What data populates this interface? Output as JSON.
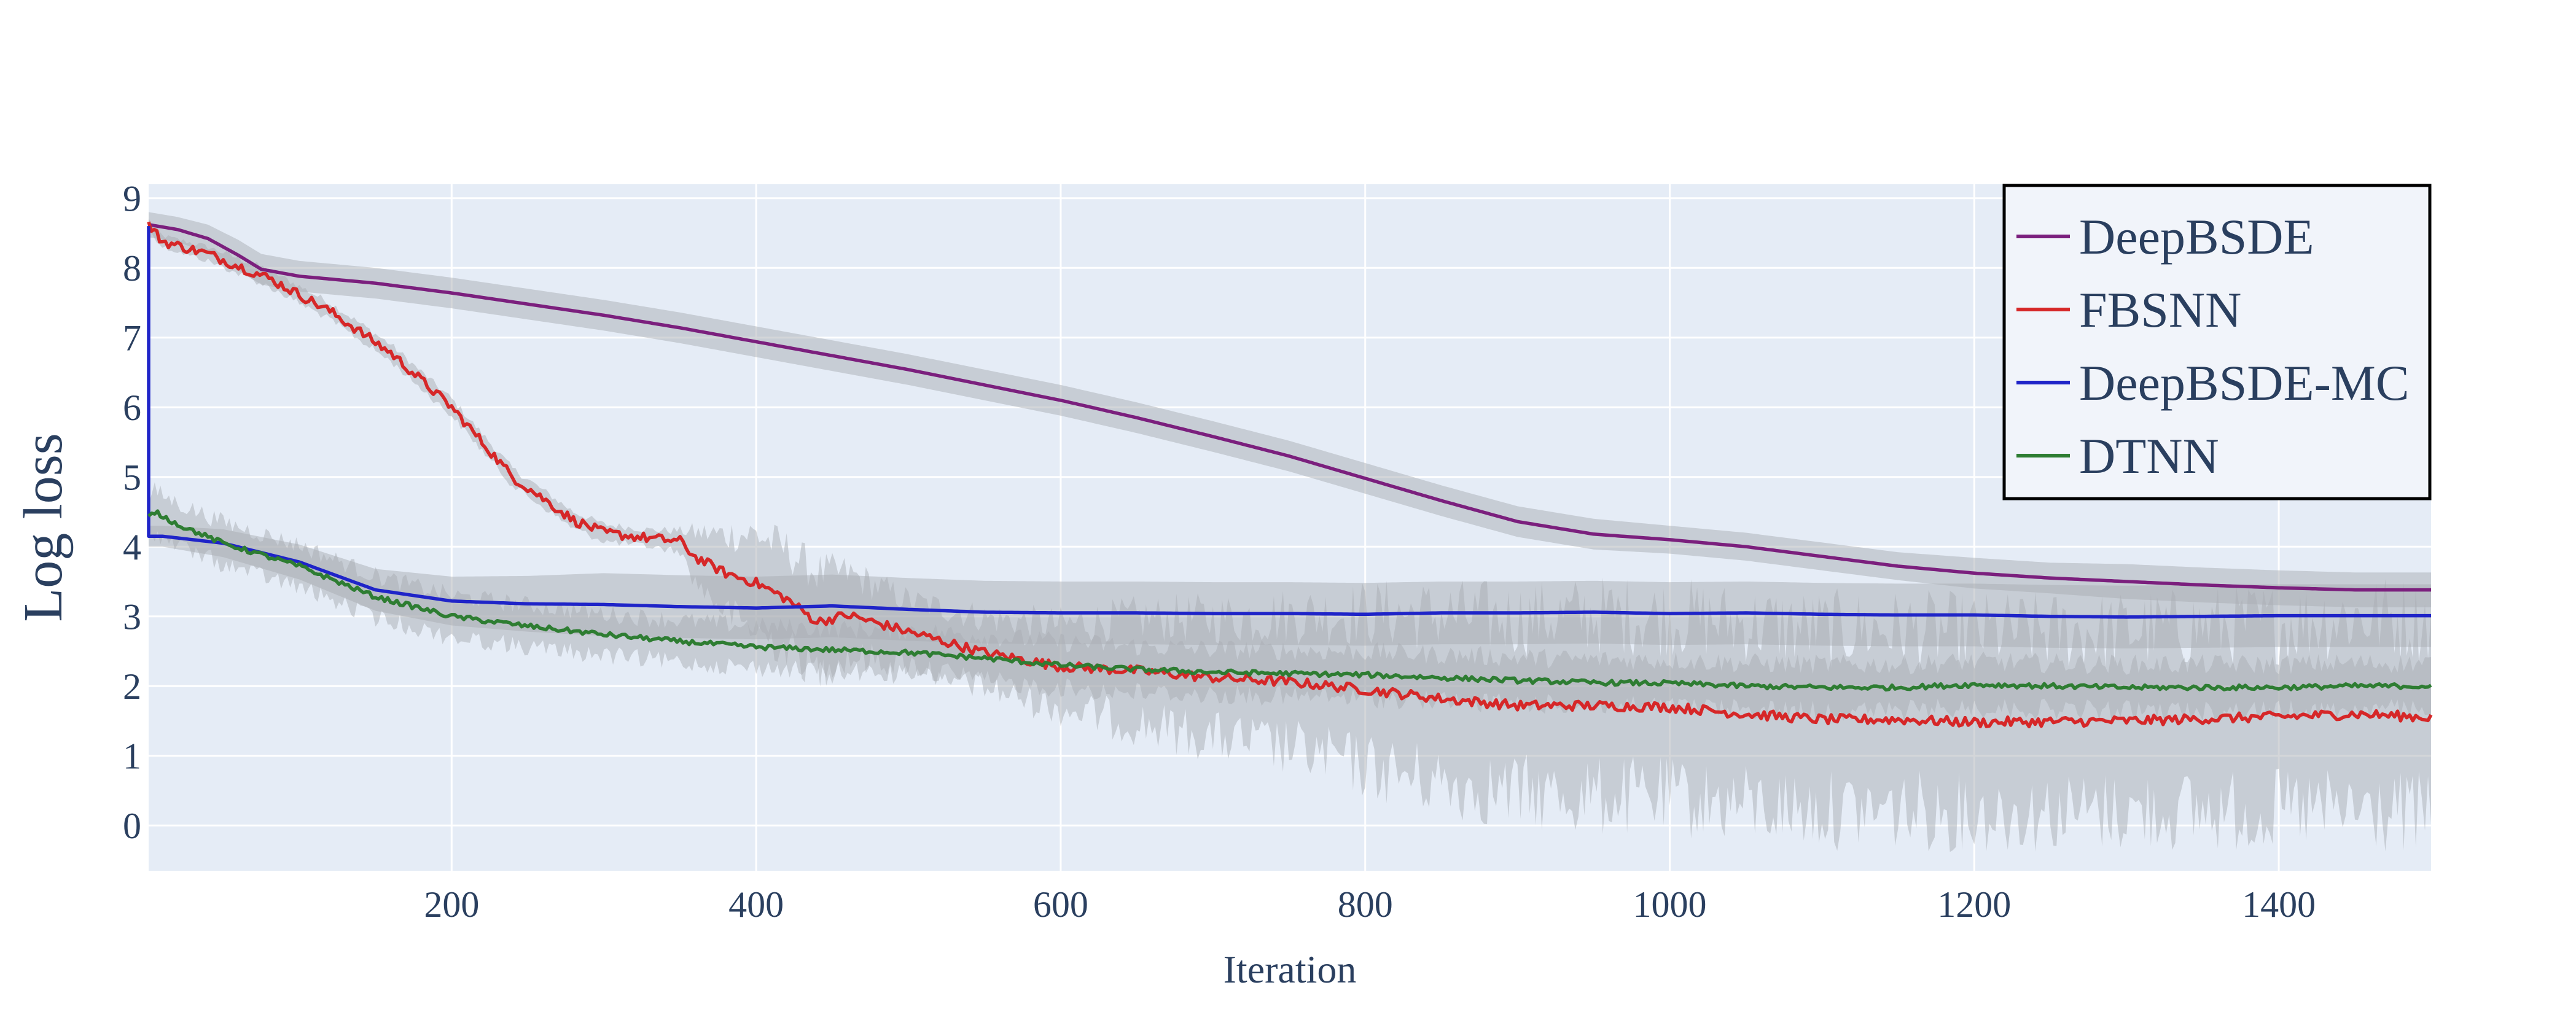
{
  "colors": {
    "plot_background": "#e5ecf6",
    "grid": "#ffffff",
    "band": "#a9aeb4",
    "text": "#2a3f5f",
    "legend_background": "#f1f4fa",
    "legend_border": "#000000"
  },
  "chart_data": {
    "type": "line",
    "xlabel": "Iteration",
    "ylabel": "Log loss",
    "xlim": [
      1,
      1500
    ],
    "ylim": [
      -0.65,
      9.2
    ],
    "xticks": [
      200,
      400,
      600,
      800,
      1000,
      1200,
      1400
    ],
    "yticks": [
      0,
      1,
      2,
      3,
      4,
      5,
      6,
      7,
      8,
      9
    ],
    "grid": true,
    "legend_position": "top-right",
    "series": [
      {
        "name": "DeepBSDE",
        "color": "#7b1f7d",
        "noise": 0.0,
        "x": [
          1,
          20,
          40,
          60,
          75,
          90,
          100,
          150,
          200,
          250,
          300,
          350,
          400,
          450,
          500,
          550,
          600,
          650,
          700,
          750,
          800,
          850,
          900,
          950,
          1000,
          1050,
          1100,
          1150,
          1200,
          1250,
          1300,
          1350,
          1400,
          1450,
          1500
        ],
        "values": [
          8.62,
          8.55,
          8.42,
          8.18,
          7.98,
          7.92,
          7.88,
          7.78,
          7.64,
          7.48,
          7.32,
          7.14,
          6.94,
          6.74,
          6.54,
          6.32,
          6.1,
          5.85,
          5.58,
          5.3,
          4.98,
          4.66,
          4.36,
          4.18,
          4.1,
          4.0,
          3.86,
          3.72,
          3.62,
          3.55,
          3.5,
          3.45,
          3.41,
          3.38,
          3.38
        ],
        "band": [
          0.18,
          0.18,
          0.2,
          0.22,
          0.22,
          0.22,
          0.22,
          0.22,
          0.22,
          0.22,
          0.22,
          0.22,
          0.22,
          0.22,
          0.22,
          0.22,
          0.22,
          0.22,
          0.22,
          0.22,
          0.22,
          0.22,
          0.22,
          0.22,
          0.2,
          0.2,
          0.2,
          0.2,
          0.22,
          0.22,
          0.25,
          0.25,
          0.25,
          0.25,
          0.25
        ]
      },
      {
        "name": "FBSNN",
        "color": "#d62728",
        "noise": 0.07,
        "x": [
          1,
          10,
          40,
          80,
          120,
          160,
          200,
          240,
          280,
          300,
          330,
          350,
          360,
          380,
          400,
          420,
          440,
          460,
          500,
          550,
          600,
          650,
          700,
          750,
          800,
          850,
          900,
          950,
          1000,
          1050,
          1100,
          1150,
          1200,
          1300,
          1400,
          1450,
          1500
        ],
        "values": [
          8.62,
          8.38,
          8.2,
          7.85,
          7.38,
          6.78,
          6.0,
          5.0,
          4.38,
          4.2,
          4.12,
          4.08,
          3.85,
          3.62,
          3.48,
          3.25,
          2.92,
          3.02,
          2.78,
          2.48,
          2.28,
          2.22,
          2.12,
          2.06,
          1.95,
          1.82,
          1.72,
          1.72,
          1.7,
          1.6,
          1.52,
          1.52,
          1.48,
          1.5,
          1.56,
          1.6,
          1.55
        ],
        "band": [
          0.08,
          0.08,
          0.1,
          0.12,
          0.12,
          0.12,
          0.12,
          0.12,
          0.12,
          0.12,
          0.12,
          0.15,
          0.35,
          0.55,
          0.7,
          0.7,
          0.7,
          0.6,
          0.45,
          0.5,
          0.6,
          0.75,
          0.85,
          0.95,
          1.1,
          1.2,
          1.25,
          1.3,
          1.3,
          1.3,
          1.3,
          1.3,
          1.3,
          1.3,
          1.35,
          1.4,
          1.4
        ]
      },
      {
        "name": "DeepBSDE-MC",
        "color": "#1f24c8",
        "noise": 0.0,
        "x": [
          1,
          1,
          10,
          50,
          100,
          150,
          200,
          250,
          300,
          350,
          400,
          450,
          500,
          550,
          600,
          650,
          700,
          750,
          800,
          850,
          900,
          950,
          1000,
          1050,
          1100,
          1150,
          1200,
          1250,
          1300,
          1350,
          1400,
          1450,
          1500
        ],
        "values": [
          8.6,
          4.15,
          4.15,
          4.05,
          3.78,
          3.38,
          3.22,
          3.18,
          3.17,
          3.14,
          3.12,
          3.15,
          3.1,
          3.06,
          3.05,
          3.05,
          3.04,
          3.04,
          3.03,
          3.05,
          3.05,
          3.06,
          3.04,
          3.05,
          3.03,
          3.02,
          3.02,
          3.0,
          2.99,
          3.0,
          3.01,
          3.01,
          3.01
        ],
        "band": [
          0.0,
          0.15,
          0.15,
          0.2,
          0.25,
          0.3,
          0.35,
          0.4,
          0.45,
          0.45,
          0.45,
          0.45,
          0.45,
          0.45,
          0.45,
          0.45,
          0.45,
          0.45,
          0.45,
          0.45,
          0.45,
          0.45,
          0.45,
          0.45,
          0.45,
          0.45,
          0.45,
          0.45,
          0.45,
          0.45,
          0.45,
          0.45,
          0.45
        ]
      },
      {
        "name": "DTNN",
        "color": "#2e7d32",
        "noise": 0.035,
        "x": [
          1,
          5,
          20,
          50,
          100,
          150,
          200,
          250,
          300,
          350,
          400,
          450,
          500,
          550,
          600,
          650,
          700,
          750,
          800,
          850,
          900,
          950,
          1000,
          1050,
          1100,
          1150,
          1200,
          1250,
          1300,
          1350,
          1400,
          1450,
          1500
        ],
        "values": [
          4.42,
          4.5,
          4.32,
          4.05,
          3.72,
          3.28,
          3.0,
          2.86,
          2.74,
          2.64,
          2.56,
          2.52,
          2.48,
          2.4,
          2.3,
          2.24,
          2.2,
          2.18,
          2.16,
          2.12,
          2.08,
          2.05,
          2.04,
          2.0,
          1.98,
          1.98,
          2.02,
          2.0,
          1.98,
          1.98,
          1.98,
          2.0,
          2.0
        ],
        "band": [
          0.25,
          0.3,
          0.3,
          0.3,
          0.3,
          0.3,
          0.3,
          0.3,
          0.3,
          0.3,
          0.3,
          0.3,
          0.32,
          0.32,
          0.33,
          0.33,
          0.33,
          0.33,
          0.33,
          0.33,
          0.33,
          0.33,
          0.33,
          0.33,
          0.33,
          0.33,
          0.33,
          0.33,
          0.33,
          0.33,
          0.33,
          0.33,
          0.33
        ]
      }
    ]
  }
}
